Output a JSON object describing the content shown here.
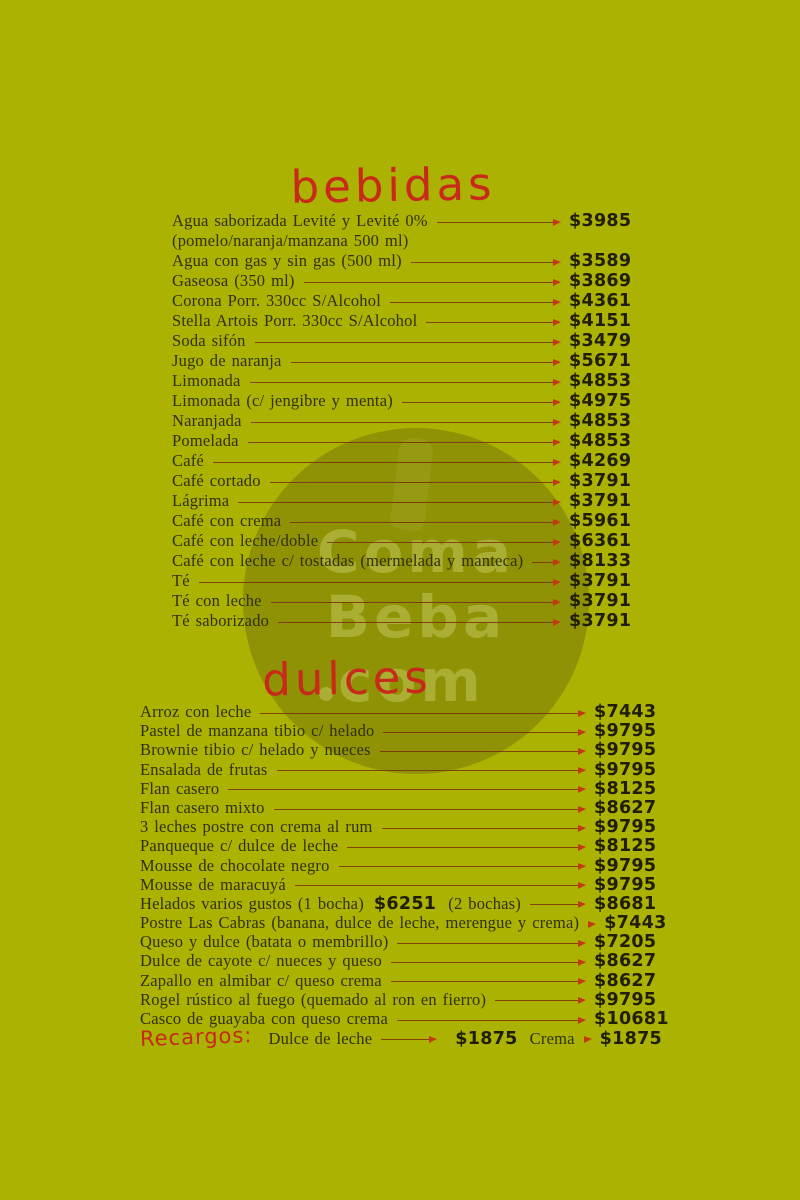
{
  "colors": {
    "background": "#abb201",
    "accent_red": "#c8291a",
    "leader_line": "#7a300a",
    "arrow": "#c43a10",
    "item_text": "#32300b",
    "price_text": "#201e07",
    "watermark_circle": "rgba(42,30,16,0.22)",
    "watermark_text": "rgba(213,218,122,0.40)"
  },
  "watermark": {
    "line1": "Coma",
    "line2": "Beba",
    "line3": "com",
    "icon": "bottle-silhouette"
  },
  "sections": [
    {
      "id": "bebidas",
      "title": "bebidas",
      "items": [
        {
          "name": "Agua saborizada Levité y Levité 0%",
          "price": "$3985",
          "note": "(pomelo/naranja/manzana 500 ml)"
        },
        {
          "name": "Agua con gas y sin gas (500 ml)",
          "price": "$3589"
        },
        {
          "name": "Gaseosa (350 ml)",
          "price": "$3869"
        },
        {
          "name": "Corona Porr. 330cc S/Alcohol",
          "price": "$4361"
        },
        {
          "name": "Stella Artois Porr. 330cc S/Alcohol",
          "price": "$4151"
        },
        {
          "name": "Soda sifón",
          "price": "$3479"
        },
        {
          "name": "Jugo de naranja",
          "price": "$5671"
        },
        {
          "name": "Limonada",
          "price": "$4853"
        },
        {
          "name": "Limonada (c/ jengibre y menta)",
          "price": "$4975"
        },
        {
          "name": "Naranjada",
          "price": "$4853"
        },
        {
          "name": "Pomelada",
          "price": "$4853"
        },
        {
          "name": "Café",
          "price": "$4269"
        },
        {
          "name": "Café cortado",
          "price": "$3791"
        },
        {
          "name": "Lágrima",
          "price": "$3791"
        },
        {
          "name": "Café con crema",
          "price": "$5961"
        },
        {
          "name": "Café con leche/doble",
          "price": "$6361"
        },
        {
          "name": "Café con leche c/ tostadas (mermelada y manteca)",
          "price": "$8133"
        },
        {
          "name": "Té",
          "price": "$3791"
        },
        {
          "name": "Té con leche",
          "price": "$3791"
        },
        {
          "name": "Té saborizado",
          "price": "$3791"
        }
      ]
    },
    {
      "id": "dulces",
      "title": "dulces",
      "items": [
        {
          "name": "Arroz con leche",
          "price": "$7443"
        },
        {
          "name": "Pastel de manzana tibio c/ helado",
          "price": "$9795"
        },
        {
          "name": "Brownie tibio c/ helado y nueces",
          "price": "$9795"
        },
        {
          "name": "Ensalada de frutas",
          "price": "$9795"
        },
        {
          "name": "Flan casero",
          "price": "$8125"
        },
        {
          "name": "Flan casero mixto",
          "price": "$8627"
        },
        {
          "name": "3 leches postre con crema al rum",
          "price": "$9795"
        },
        {
          "name": "Panqueque c/ dulce de leche",
          "price": "$8125"
        },
        {
          "name": "Mousse de chocolate negro",
          "price": "$9795"
        },
        {
          "name": "Mousse de maracuyá",
          "price": "$9795"
        },
        {
          "name": "Helados varios gustos (1 bocha)",
          "inline_price": "$6251",
          "name2": "(2 bochas)",
          "price": "$8681"
        },
        {
          "name": "Postre Las Cabras (banana, dulce de leche, merengue y crema)",
          "price": "$7443"
        },
        {
          "name": "Queso y dulce (batata o membrillo)",
          "price": "$7205"
        },
        {
          "name": "Dulce de cayote c/ nueces y queso",
          "price": "$8627"
        },
        {
          "name": "Zapallo en almibar c/ queso crema",
          "price": "$8627"
        },
        {
          "name": "Rogel rústico al fuego (quemado al ron en fierro)",
          "price": "$9795"
        },
        {
          "name": "Casco de guayaba con queso crema",
          "price": "$10681"
        }
      ],
      "surcharges": {
        "label": "Recargos:",
        "entries": [
          {
            "name": "Dulce de leche",
            "price": "$1875"
          },
          {
            "name": "Crema",
            "price": "$1875"
          }
        ]
      }
    }
  ]
}
